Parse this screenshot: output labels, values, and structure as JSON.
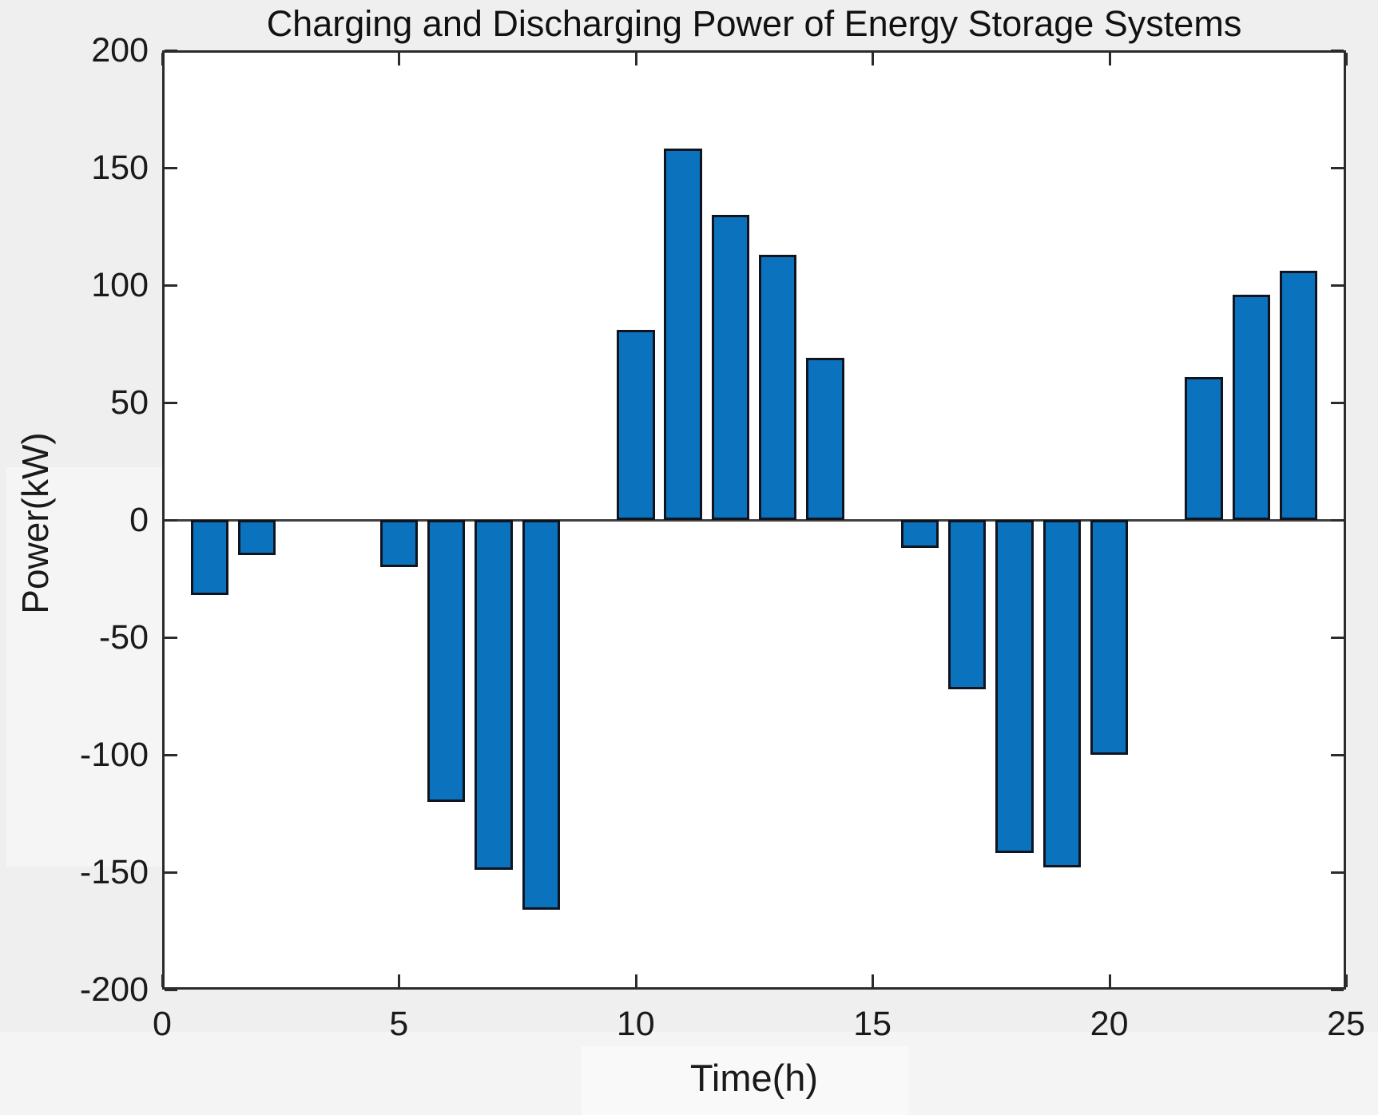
{
  "chart_data": {
    "type": "bar",
    "title": "Charging and Discharging Power of Energy Storage Systems",
    "xlabel": "Time(h)",
    "ylabel": "Power(kW)",
    "x": [
      1,
      2,
      3,
      4,
      5,
      6,
      7,
      8,
      9,
      10,
      11,
      12,
      13,
      14,
      15,
      16,
      17,
      18,
      19,
      20,
      21,
      22,
      23,
      24
    ],
    "values": [
      -32,
      -15,
      0,
      0,
      -20,
      -120,
      -149,
      -166,
      0,
      81,
      158,
      130,
      113,
      69,
      0,
      -12,
      -72,
      -142,
      -148,
      -100,
      0,
      61,
      96,
      106
    ],
    "xlim": [
      0,
      25
    ],
    "ylim": [
      -200,
      200
    ],
    "xticks": [
      0,
      5,
      10,
      15,
      20,
      25
    ],
    "yticks": [
      -200,
      -150,
      -100,
      -50,
      0,
      50,
      100,
      150,
      200
    ],
    "bar_width": 0.8,
    "grid": "off",
    "legend": "none",
    "bar_color": "#0b72bd",
    "bar_edge_color": "#10141f",
    "axis_color": "#2b2b2b",
    "zero_line_color": "#3f3f3f",
    "figure_background": "#efefef",
    "plot_background": "#ffffff"
  }
}
